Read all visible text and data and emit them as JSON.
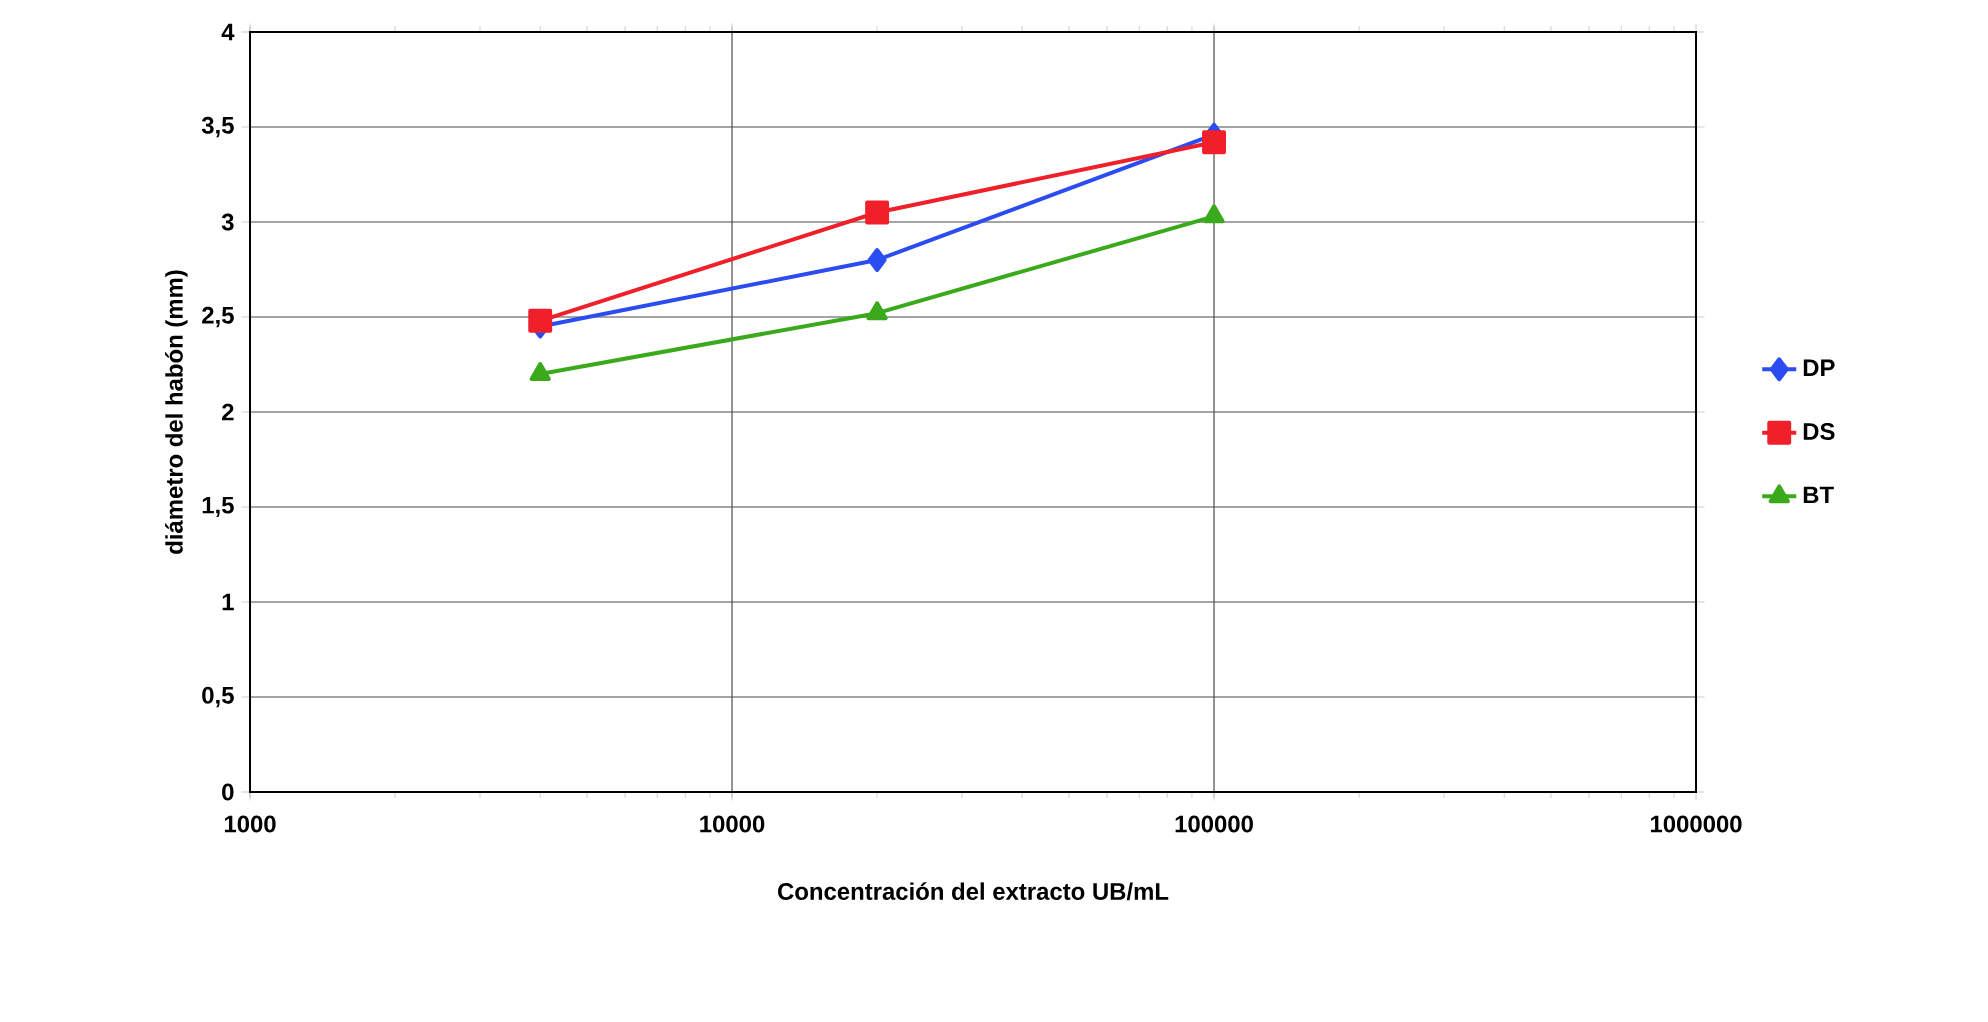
{
  "chart_data": {
    "type": "line",
    "xlabel": "Concentración del extracto UB/mL",
    "ylabel": "diámetro del habón (mm)",
    "x": [
      4000,
      20000,
      100000
    ],
    "series": [
      {
        "name": "DP",
        "color": "#2b4cf0",
        "marker": "diamond",
        "values": [
          2.45,
          2.8,
          3.46
        ]
      },
      {
        "name": "DS",
        "color": "#f0202a",
        "marker": "square",
        "values": [
          2.48,
          3.05,
          3.42
        ]
      },
      {
        "name": "BT",
        "color": "#3aaa1c",
        "marker": "triangle",
        "values": [
          2.2,
          2.52,
          3.03
        ]
      }
    ],
    "log": "x",
    "xlim": [
      1000,
      1000000
    ],
    "xticks": [
      1000,
      10000,
      100000,
      1000000
    ],
    "ylim": [
      0,
      4
    ],
    "yticks": [
      0,
      {
        "value": 0.5,
        "label": "0,5"
      },
      1,
      {
        "value": 1.5,
        "label": "1,5"
      },
      2,
      {
        "value": 2.5,
        "label": "2,5"
      },
      3,
      {
        "value": 3.5,
        "label": "3,5"
      },
      4
    ],
    "grid": true,
    "legend": "right",
    "line_style": "solid"
  }
}
